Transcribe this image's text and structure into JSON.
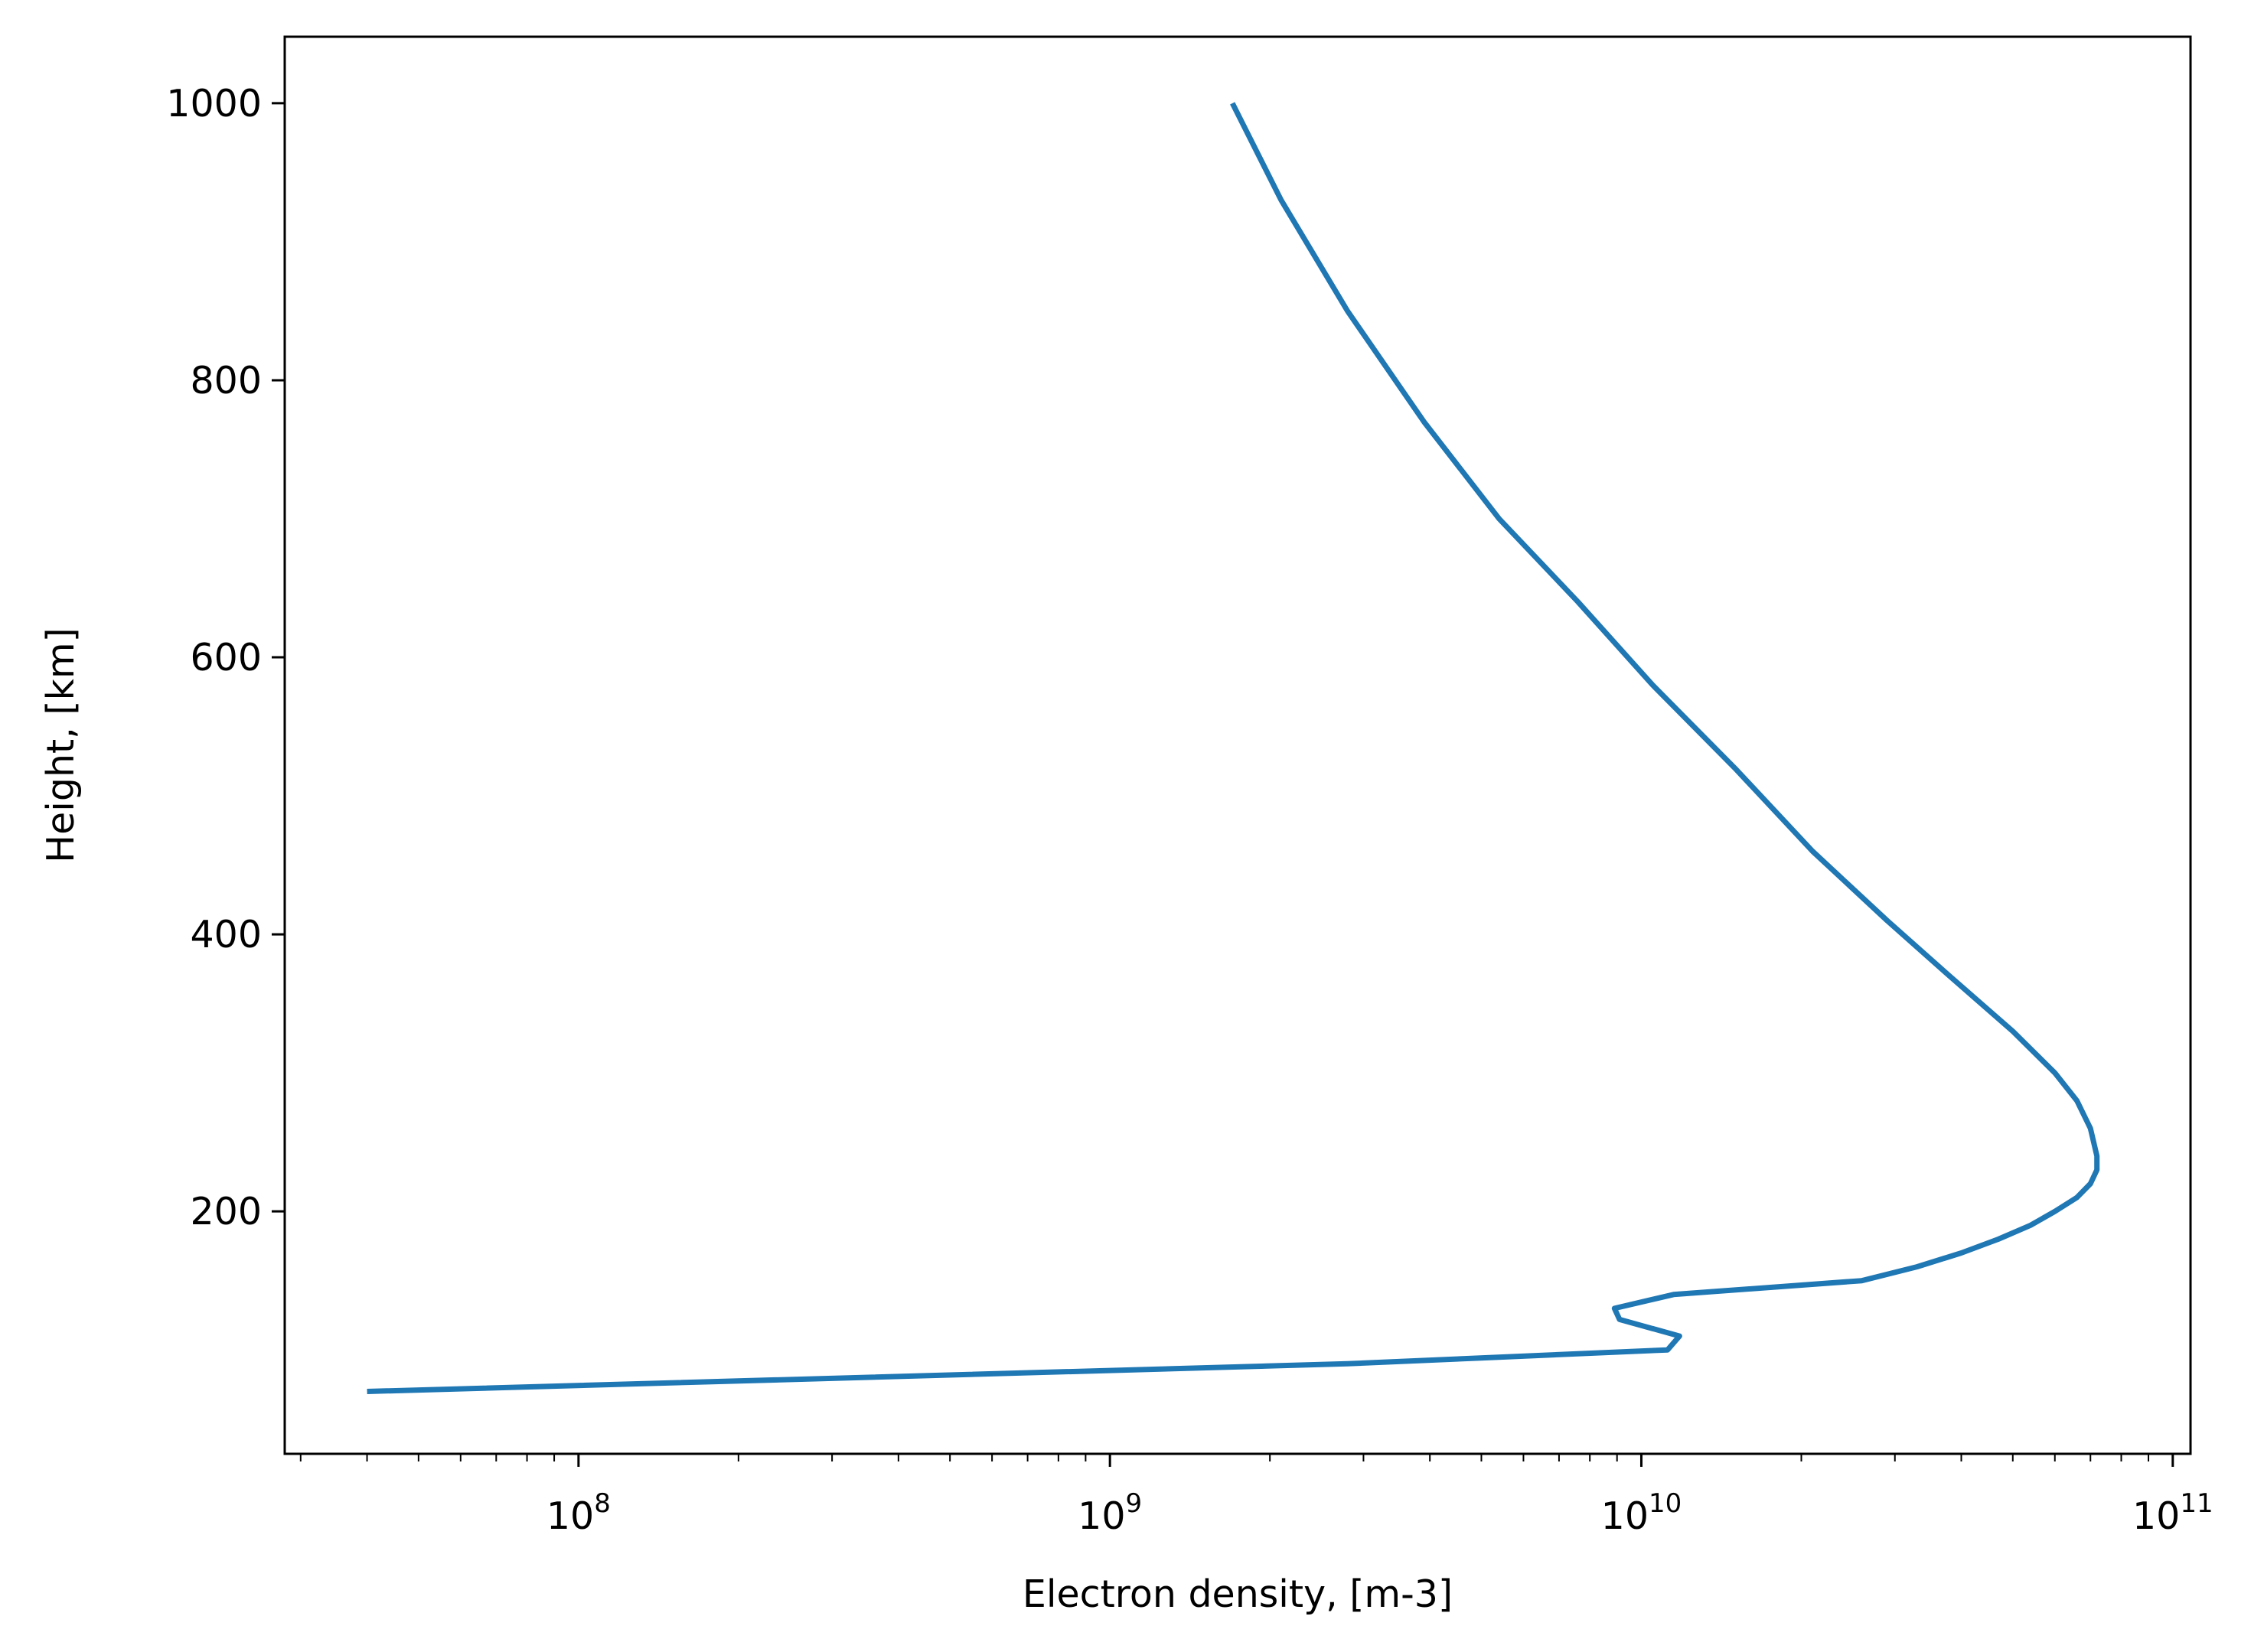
{
  "chart_data": {
    "type": "line",
    "title": "",
    "xlabel": "Electron density, [m-3]",
    "ylabel": "Height, [km]",
    "x_scale": "log",
    "xlim": [
      28000000,
      108000000000
    ],
    "ylim": [
      25,
      1048
    ],
    "grid": false,
    "x_ticks": [
      {
        "base": "10",
        "exp": "8",
        "value": 100000000
      },
      {
        "base": "10",
        "exp": "9",
        "value": 1000000000
      },
      {
        "base": "10",
        "exp": "10",
        "value": 10000000000
      },
      {
        "base": "10",
        "exp": "11",
        "value": 100000000000
      }
    ],
    "y_ticks": [
      {
        "label": "200",
        "value": 200
      },
      {
        "label": "400",
        "value": 400
      },
      {
        "label": "600",
        "value": 600
      },
      {
        "label": "800",
        "value": 800
      },
      {
        "label": "1000",
        "value": 1000
      }
    ],
    "series": [
      {
        "color": "#1f77b4",
        "points": [
          {
            "x": 40000000,
            "y": 70
          },
          {
            "x": 2800000000,
            "y": 90
          },
          {
            "x": 11200000000,
            "y": 100
          },
          {
            "x": 11800000000,
            "y": 110
          },
          {
            "x": 9100000000,
            "y": 122
          },
          {
            "x": 8900000000,
            "y": 130
          },
          {
            "x": 11500000000,
            "y": 140
          },
          {
            "x": 26000000000,
            "y": 150
          },
          {
            "x": 33000000000,
            "y": 160
          },
          {
            "x": 40000000000,
            "y": 170
          },
          {
            "x": 47000000000,
            "y": 180
          },
          {
            "x": 54000000000,
            "y": 190
          },
          {
            "x": 60000000000,
            "y": 200
          },
          {
            "x": 66000000000,
            "y": 210
          },
          {
            "x": 70000000000,
            "y": 220
          },
          {
            "x": 72000000000,
            "y": 230
          },
          {
            "x": 72000000000,
            "y": 240
          },
          {
            "x": 70000000000,
            "y": 260
          },
          {
            "x": 66000000000,
            "y": 280
          },
          {
            "x": 60000000000,
            "y": 300
          },
          {
            "x": 50000000000,
            "y": 330
          },
          {
            "x": 38000000000,
            "y": 370
          },
          {
            "x": 29000000000,
            "y": 410
          },
          {
            "x": 21000000000,
            "y": 460
          },
          {
            "x": 15000000000,
            "y": 520
          },
          {
            "x": 10500000000,
            "y": 580
          },
          {
            "x": 7600000000,
            "y": 640
          },
          {
            "x": 5400000000,
            "y": 700
          },
          {
            "x": 3900000000,
            "y": 770
          },
          {
            "x": 2800000000,
            "y": 850
          },
          {
            "x": 2100000000,
            "y": 930
          },
          {
            "x": 1700000000,
            "y": 1000
          }
        ]
      }
    ]
  }
}
